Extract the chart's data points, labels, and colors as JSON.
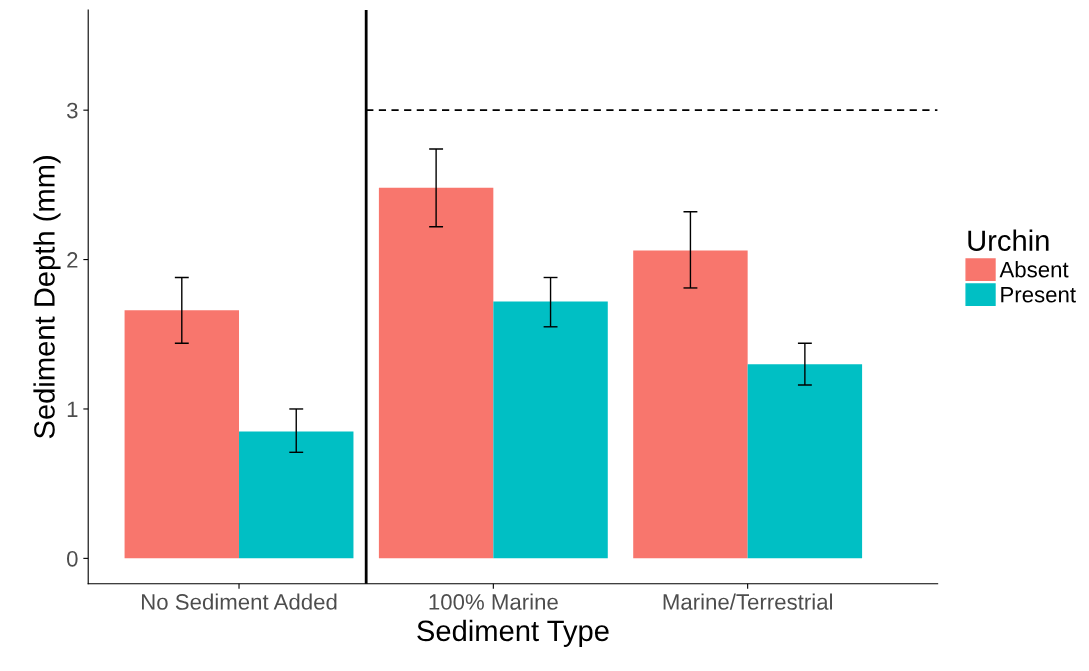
{
  "chart_data": {
    "type": "bar",
    "xlabel": "Sediment Type",
    "ylabel": "Sediment Depth (mm)",
    "legend_title": "Urchin",
    "categories": [
      "No Sediment Added",
      "100% Marine",
      "Marine/Terrestrial"
    ],
    "series": [
      {
        "name": "Absent",
        "color": "#f8766d",
        "values": [
          1.66,
          2.48,
          2.06
        ],
        "errors": [
          [
            1.44,
            1.88
          ],
          [
            2.22,
            2.74
          ],
          [
            1.81,
            2.32
          ]
        ]
      },
      {
        "name": "Present",
        "color": "#00bfc4",
        "values": [
          0.85,
          1.72,
          1.3
        ],
        "errors": [
          [
            0.71,
            1.0
          ],
          [
            1.55,
            1.88
          ],
          [
            1.16,
            1.44
          ]
        ]
      }
    ],
    "ylim": [
      -0.17,
      3.67
    ],
    "yticks": [
      0,
      1,
      2,
      3
    ],
    "ref_lines": [
      {
        "axis": "y",
        "value": 3,
        "color": "#000000",
        "line_style": "dashed"
      }
    ],
    "grid": false,
    "legend": "right"
  }
}
